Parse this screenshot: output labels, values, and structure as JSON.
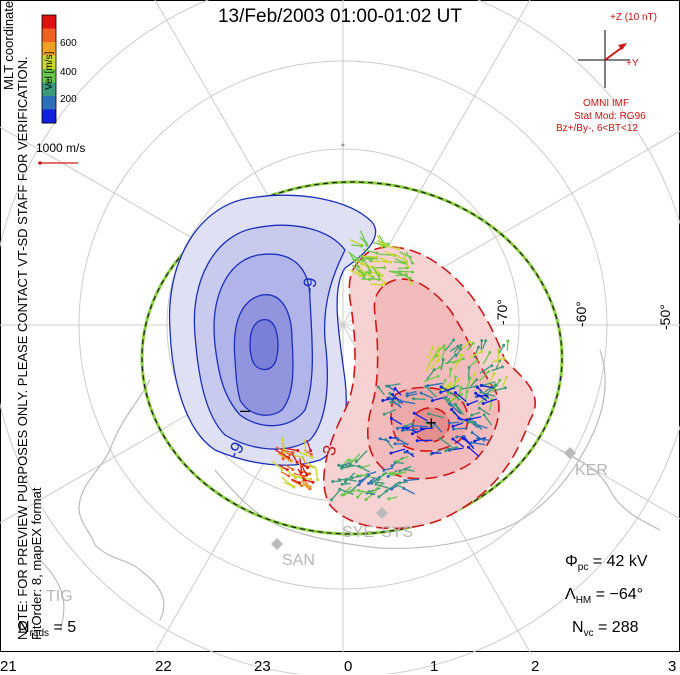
{
  "title": "13/Feb/2003 01:00-01:02 UT",
  "side_text": {
    "coords": "MLT coordinates",
    "note": "NOTE: FOR PREVIEW PURPOSES ONLY. PLEASE CONTACT VT-SD STAFF FOR VERIFICATION.",
    "fit": "FitOrder: 8, mapEX format"
  },
  "colorbar": {
    "title": "Vel [m/s]",
    "ticks": [
      "600",
      "400",
      "200"
    ],
    "colors": [
      "#1020e0",
      "#2a6fb8",
      "#3a9a7a",
      "#6cc84a",
      "#c8d830",
      "#f0a020",
      "#f06020",
      "#e01010"
    ]
  },
  "velocity_scale": "1000 m/s",
  "imf": {
    "z_label": "+Z (10 nT)",
    "y_label": "+Y",
    "source": "OMNI IMF",
    "model": "Stat Mod: RG96",
    "condition": "Bz+/By-, 6<BT<12"
  },
  "latitude_labels": [
    "-50°",
    "-60°",
    "-70°"
  ],
  "mlt_labels": [
    "21",
    "22",
    "23",
    "0",
    "1",
    "2",
    "3"
  ],
  "radar_sites": [
    "KER",
    "SYE",
    "SYS",
    "SAN",
    "TIG"
  ],
  "contour_labels": [
    "-9",
    "-9",
    "3",
    "–",
    "+"
  ],
  "stats": {
    "phi_pc": "= 42 kV",
    "lambda_hm": "= −64°",
    "n_vc": "= 288",
    "n_rads": "= 5"
  },
  "colors": {
    "negative_cell": "#1a2fbf",
    "positive_cell": "#d01818",
    "grid": "#c8c8c8",
    "hm_boundary": "#8bd040"
  }
}
